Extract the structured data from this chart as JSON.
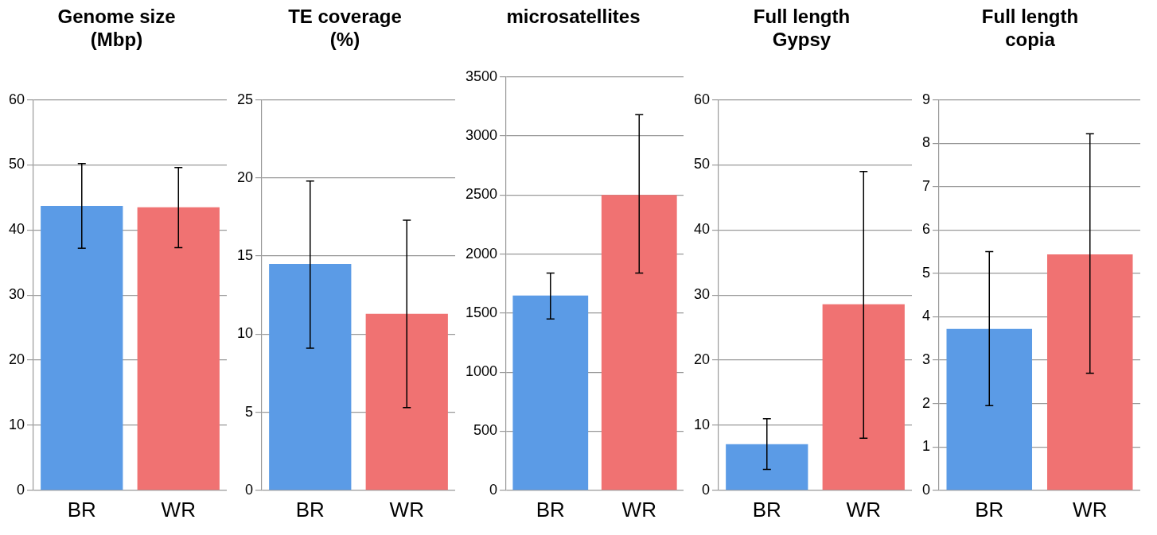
{
  "chart_data": [
    {
      "type": "bar",
      "title": "Genome size\n(Mbp)",
      "categories": [
        "BR",
        "WR"
      ],
      "values": [
        43.7,
        43.5
      ],
      "colors": [
        "#5b9be6",
        "#f07272"
      ],
      "errors": [
        [
          37.2,
          50.2
        ],
        [
          37.3,
          49.6
        ]
      ],
      "ylim": [
        0,
        60
      ],
      "yticks": [
        0,
        10,
        20,
        30,
        40,
        50,
        60
      ],
      "grid": "y"
    },
    {
      "type": "bar",
      "title": "TE coverage\n(%)",
      "categories": [
        "BR",
        "WR"
      ],
      "values": [
        14.5,
        11.3
      ],
      "colors": [
        "#5b9be6",
        "#f07272"
      ],
      "errors": [
        [
          9.1,
          19.8
        ],
        [
          5.3,
          17.3
        ]
      ],
      "ylim": [
        0,
        25
      ],
      "yticks": [
        0,
        5,
        10,
        15,
        20,
        25
      ],
      "grid": "y"
    },
    {
      "type": "bar",
      "title": "microsatellites",
      "categories": [
        "BR",
        "WR"
      ],
      "values": [
        1650,
        2500
      ],
      "colors": [
        "#5b9be6",
        "#f07272"
      ],
      "errors": [
        [
          1450,
          1840
        ],
        [
          1840,
          3180
        ]
      ],
      "ylim": [
        0,
        3500
      ],
      "yticks": [
        0,
        500,
        1000,
        1500,
        2000,
        2500,
        3000,
        3500
      ],
      "grid": "y"
    },
    {
      "type": "bar",
      "title": "Full length\nGypsy",
      "categories": [
        "BR",
        "WR"
      ],
      "values": [
        7.1,
        28.6
      ],
      "colors": [
        "#5b9be6",
        "#f07272"
      ],
      "errors": [
        [
          3.2,
          11
        ],
        [
          8,
          49
        ]
      ],
      "ylim": [
        0,
        60
      ],
      "yticks": [
        0,
        10,
        20,
        30,
        40,
        50,
        60
      ],
      "grid": "y"
    },
    {
      "type": "bar",
      "title": "Full length\ncopia",
      "categories": [
        "BR",
        "WR"
      ],
      "values": [
        3.72,
        5.44
      ],
      "colors": [
        "#5b9be6",
        "#f07272"
      ],
      "errors": [
        [
          1.95,
          5.5
        ],
        [
          2.7,
          8.22
        ]
      ],
      "ylim": [
        0,
        9
      ],
      "yticks": [
        0,
        1,
        2,
        3,
        4,
        5,
        6,
        7,
        8,
        9
      ],
      "grid": "y"
    }
  ]
}
